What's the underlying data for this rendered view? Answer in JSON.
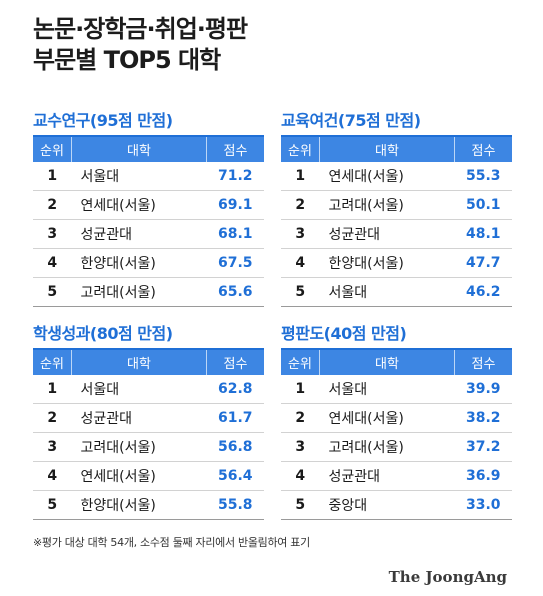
{
  "title": {
    "line1": "논문·장학금·취업·평판",
    "line2": "부문별 TOP5 대학"
  },
  "table_headers": {
    "rank": "순위",
    "university": "대학",
    "score": "점수"
  },
  "panels": [
    {
      "title": "교수연구(95점 만점)",
      "rows": [
        {
          "rank": "1",
          "name": "서울대",
          "score": "71.2"
        },
        {
          "rank": "2",
          "name": "연세대(서울)",
          "score": "69.1"
        },
        {
          "rank": "3",
          "name": "성균관대",
          "score": "68.1"
        },
        {
          "rank": "4",
          "name": "한양대(서울)",
          "score": "67.5"
        },
        {
          "rank": "5",
          "name": "고려대(서울)",
          "score": "65.6"
        }
      ]
    },
    {
      "title": "교육여건(75점 만점)",
      "rows": [
        {
          "rank": "1",
          "name": "연세대(서울)",
          "score": "55.3"
        },
        {
          "rank": "2",
          "name": "고려대(서울)",
          "score": "50.1"
        },
        {
          "rank": "3",
          "name": "성균관대",
          "score": "48.1"
        },
        {
          "rank": "4",
          "name": "한양대(서울)",
          "score": "47.7"
        },
        {
          "rank": "5",
          "name": "서울대",
          "score": "46.2"
        }
      ]
    },
    {
      "title": "학생성과(80점 만점)",
      "rows": [
        {
          "rank": "1",
          "name": "서울대",
          "score": "62.8"
        },
        {
          "rank": "2",
          "name": "성균관대",
          "score": "61.7"
        },
        {
          "rank": "3",
          "name": "고려대(서울)",
          "score": "56.8"
        },
        {
          "rank": "4",
          "name": "연세대(서울)",
          "score": "56.4"
        },
        {
          "rank": "5",
          "name": "한양대(서울)",
          "score": "55.8"
        }
      ]
    },
    {
      "title": "평판도(40점 만점)",
      "rows": [
        {
          "rank": "1",
          "name": "서울대",
          "score": "39.9"
        },
        {
          "rank": "2",
          "name": "연세대(서울)",
          "score": "38.2"
        },
        {
          "rank": "3",
          "name": "고려대(서울)",
          "score": "37.2"
        },
        {
          "rank": "4",
          "name": "성균관대",
          "score": "36.9"
        },
        {
          "rank": "5",
          "name": "중앙대",
          "score": "33.0"
        }
      ]
    }
  ],
  "footnote": "※평가 대상 대학 54개, 소수점 둘째 자리에서 반올림하여 표기",
  "logo": "The JoongAng",
  "colors": {
    "accent": "#1f6fd6",
    "header_bg": "#3d86e3"
  }
}
